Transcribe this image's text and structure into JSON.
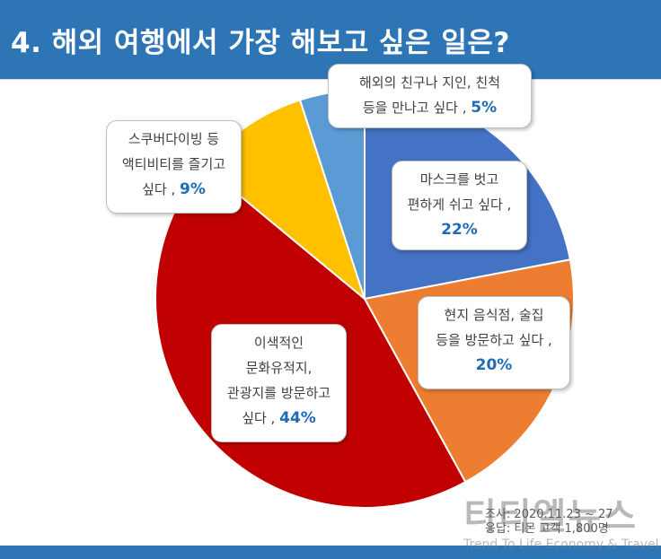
{
  "title": "4. 해외 여행에서 가장 해보고 싶은 일은?",
  "chart_data": {
    "type": "pie",
    "start_angle_deg": 0,
    "direction": "clockwise",
    "slices": [
      {
        "label_lines": [
          "마스크를 벗고",
          "편하게 쉬고 싶다 ,"
        ],
        "value": 22,
        "pct_text": "22%",
        "color": "#4472c4"
      },
      {
        "label_lines": [
          "현지 음식점, 술집",
          "등을 방문하고 싶다 ,"
        ],
        "value": 20,
        "pct_text": "20%",
        "color": "#ed7d31"
      },
      {
        "label_lines": [
          "이색적인",
          "문화유적지,",
          "관광지를 방문하고"
        ],
        "value": 44,
        "pct_text": "44%",
        "last_prefix": "싶다 ,",
        "color": "#c00000"
      },
      {
        "label_lines": [
          "스쿠버다이빙 등",
          "액티비티를 즐기고"
        ],
        "value": 9,
        "pct_text": "9%",
        "last_prefix": "싶다 ,",
        "color": "#ffc000"
      },
      {
        "label_lines": [
          "해외의 친구나 지인, 친척"
        ],
        "value": 5,
        "pct_text": "5%",
        "last_prefix": "등을 만나고 싶다 ,",
        "color": "#5b9bd5"
      }
    ]
  },
  "survey_info": {
    "line1": "조사: 2020.11.23 ~ 27",
    "line2": "응답: 티몬 고객 1,800명"
  },
  "watermark": {
    "logo": "티티엘뉴스",
    "subtitle": "Trend To Life Economy & Travel"
  }
}
